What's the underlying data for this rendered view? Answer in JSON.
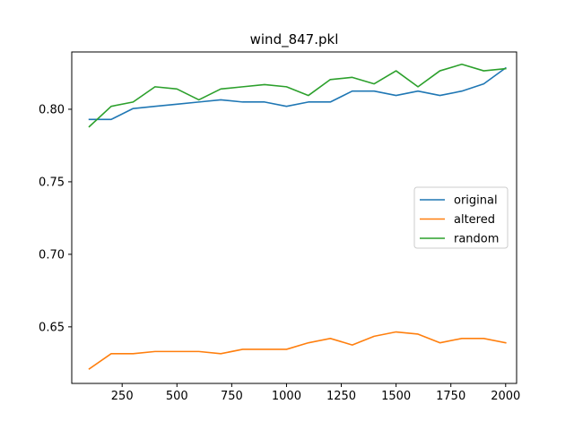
{
  "chart_data": {
    "type": "line",
    "title": "wind_847.pkl",
    "xlabel": "",
    "ylabel": "",
    "xlim": [
      20,
      2050
    ],
    "ylim": [
      0.611,
      0.8395
    ],
    "x_ticks": [
      250,
      500,
      750,
      1000,
      1250,
      1500,
      1750,
      2000
    ],
    "x_tick_labels": [
      "250",
      "500",
      "750",
      "1000",
      "1250",
      "1500",
      "1750",
      "2000"
    ],
    "y_ticks": [
      0.65,
      0.7,
      0.75,
      0.8
    ],
    "y_tick_labels": [
      "0.65",
      "0.70",
      "0.75",
      "0.80"
    ],
    "grid": false,
    "legend_position": "center-right",
    "x": [
      100,
      200,
      300,
      400,
      500,
      600,
      700,
      800,
      900,
      1000,
      1100,
      1200,
      1300,
      1400,
      1500,
      1600,
      1700,
      1800,
      1900,
      2000
    ],
    "series": [
      {
        "name": "original",
        "color": "#1f77b4",
        "values": [
          0.793,
          0.793,
          0.8005,
          0.802,
          0.8035,
          0.805,
          0.8065,
          0.805,
          0.805,
          0.802,
          0.805,
          0.805,
          0.8125,
          0.8125,
          0.8095,
          0.8125,
          0.8095,
          0.8125,
          0.8175,
          0.8285
        ]
      },
      {
        "name": "altered",
        "color": "#ff7f0e",
        "values": [
          0.621,
          0.6315,
          0.6315,
          0.633,
          0.633,
          0.633,
          0.6315,
          0.6345,
          0.6345,
          0.6345,
          0.639,
          0.642,
          0.6375,
          0.6435,
          0.6465,
          0.645,
          0.639,
          0.642,
          0.642,
          0.639
        ]
      },
      {
        "name": "random",
        "color": "#2ca02c",
        "values": [
          0.788,
          0.802,
          0.805,
          0.8155,
          0.814,
          0.8065,
          0.814,
          0.8155,
          0.817,
          0.8155,
          0.8095,
          0.8205,
          0.822,
          0.8175,
          0.8265,
          0.8155,
          0.8265,
          0.831,
          0.8265,
          0.828
        ]
      }
    ]
  }
}
